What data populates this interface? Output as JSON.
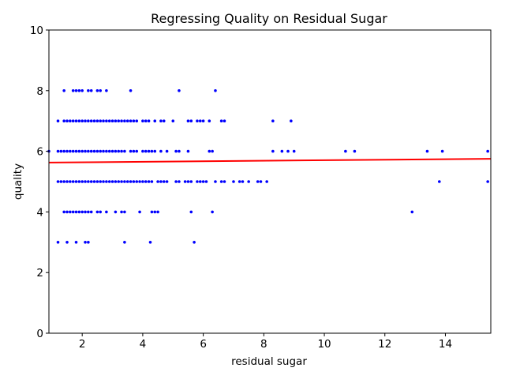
{
  "chart_data": {
    "type": "scatter",
    "title": "Regressing Quality on Residual Sugar",
    "xlabel": "residual sugar",
    "ylabel": "quality",
    "xlim": [
      0.9,
      15.5
    ],
    "ylim": [
      0,
      10
    ],
    "x_ticks": [
      2,
      4,
      6,
      8,
      10,
      12,
      14
    ],
    "y_ticks": [
      0,
      2,
      4,
      6,
      8,
      10
    ],
    "grid": false,
    "legend": "none",
    "point_color": "#0000ff",
    "line_color": "#ff0000",
    "regression_line": {
      "intercept": 5.62,
      "slope": 0.0085
    },
    "points": {
      "3": [
        1.2,
        1.5,
        1.8,
        2.1,
        2.2,
        3.4,
        4.25,
        5.7
      ],
      "4": [
        1.4,
        1.5,
        1.6,
        1.7,
        1.8,
        1.9,
        2.0,
        2.1,
        2.2,
        2.3,
        2.5,
        2.6,
        2.8,
        3.1,
        3.3,
        3.4,
        3.9,
        4.3,
        4.4,
        4.5,
        5.6,
        6.3,
        12.9
      ],
      "5": [
        1.2,
        1.3,
        1.4,
        1.5,
        1.6,
        1.7,
        1.8,
        1.9,
        2.0,
        2.1,
        2.2,
        2.3,
        2.4,
        2.5,
        2.6,
        2.7,
        2.8,
        2.9,
        3.0,
        3.1,
        3.2,
        3.3,
        3.4,
        3.5,
        3.6,
        3.7,
        3.8,
        3.9,
        4.0,
        4.1,
        4.2,
        4.3,
        4.5,
        4.6,
        4.7,
        4.8,
        5.1,
        5.2,
        5.4,
        5.5,
        5.6,
        5.8,
        5.9,
        6.0,
        6.1,
        6.4,
        6.6,
        6.7,
        7.0,
        7.2,
        7.3,
        7.5,
        7.8,
        7.9,
        8.1,
        13.8,
        15.4
      ],
      "6": [
        0.9,
        1.2,
        1.3,
        1.4,
        1.5,
        1.6,
        1.7,
        1.8,
        1.9,
        2.0,
        2.1,
        2.2,
        2.3,
        2.4,
        2.5,
        2.6,
        2.7,
        2.8,
        2.9,
        3.0,
        3.1,
        3.2,
        3.3,
        3.4,
        3.6,
        3.7,
        3.8,
        4.0,
        4.1,
        4.2,
        4.3,
        4.4,
        4.6,
        4.8,
        5.1,
        5.2,
        5.5,
        6.2,
        6.3,
        8.3,
        8.6,
        8.8,
        9.0,
        10.7,
        11.0,
        13.4,
        13.9,
        15.4
      ],
      "7": [
        1.2,
        1.4,
        1.5,
        1.6,
        1.7,
        1.8,
        1.9,
        2.0,
        2.1,
        2.2,
        2.3,
        2.4,
        2.5,
        2.6,
        2.7,
        2.8,
        2.9,
        3.0,
        3.1,
        3.2,
        3.3,
        3.4,
        3.5,
        3.6,
        3.7,
        3.8,
        4.0,
        4.1,
        4.2,
        4.4,
        4.6,
        4.7,
        5.0,
        5.5,
        5.6,
        5.8,
        5.9,
        6.0,
        6.2,
        6.6,
        6.7,
        8.3,
        8.9
      ],
      "8": [
        1.4,
        1.7,
        1.8,
        1.9,
        2.0,
        2.2,
        2.3,
        2.5,
        2.6,
        2.8,
        3.6,
        5.2,
        6.4
      ]
    }
  }
}
